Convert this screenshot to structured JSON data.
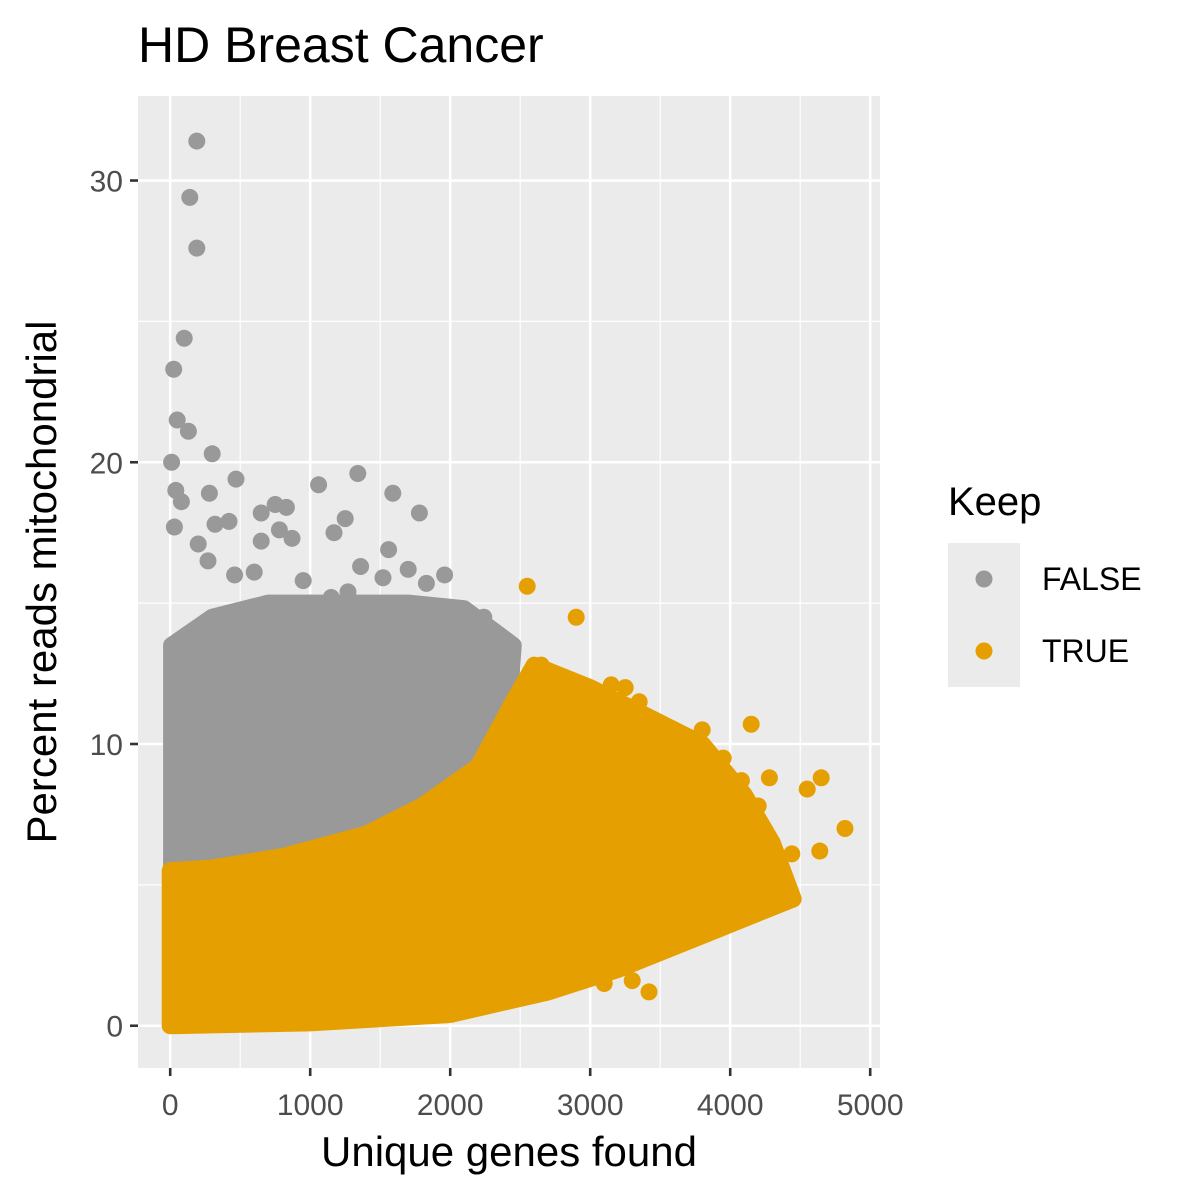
{
  "chart_data": {
    "type": "scatter",
    "title": "HD Breast Cancer",
    "xlabel": "Unique genes found",
    "ylabel": "Percent reads mitochondrial",
    "xlim": [
      -230,
      5070
    ],
    "ylim": [
      -1.5,
      33
    ],
    "x_ticks": [
      0,
      1000,
      2000,
      3000,
      4000,
      5000
    ],
    "x_tick_labels": [
      "0",
      "1000",
      "2000",
      "3000",
      "4000",
      "5000"
    ],
    "y_ticks": [
      0,
      10,
      20,
      30
    ],
    "y_tick_labels": [
      "0",
      "10",
      "20",
      "30"
    ],
    "grid": true,
    "legend": {
      "title": "Keep",
      "position": "right",
      "entries": [
        {
          "label": "FALSE",
          "color": "#999999"
        },
        {
          "label": "TRUE",
          "color": "#E69F00"
        }
      ]
    },
    "series": [
      {
        "name": "FALSE",
        "color": "#999999",
        "envelope_upper": [
          [
            10,
            13.5
          ],
          [
            300,
            14.5
          ],
          [
            700,
            15
          ],
          [
            1200,
            15
          ],
          [
            1700,
            15
          ],
          [
            2100,
            14.8
          ],
          [
            2450,
            13.5
          ]
        ],
        "points": [
          [
            190,
            31.4
          ],
          [
            140,
            29.4
          ],
          [
            190,
            27.6
          ],
          [
            100,
            24.4
          ],
          [
            25,
            23.3
          ],
          [
            50,
            21.5
          ],
          [
            130,
            21.1
          ],
          [
            300,
            20.3
          ],
          [
            10,
            20
          ],
          [
            470,
            19.4
          ],
          [
            1340,
            19.6
          ],
          [
            1060,
            19.2
          ],
          [
            1590,
            18.9
          ],
          [
            280,
            18.9
          ],
          [
            40,
            19
          ],
          [
            80,
            18.6
          ],
          [
            750,
            18.5
          ],
          [
            830,
            18.4
          ],
          [
            1780,
            18.2
          ],
          [
            650,
            18.2
          ],
          [
            420,
            17.9
          ],
          [
            1250,
            18
          ],
          [
            320,
            17.8
          ],
          [
            1170,
            17.5
          ],
          [
            780,
            17.6
          ],
          [
            870,
            17.3
          ],
          [
            650,
            17.2
          ],
          [
            1560,
            16.9
          ],
          [
            30,
            17.7
          ],
          [
            200,
            17.1
          ],
          [
            1960,
            16
          ],
          [
            1360,
            16.3
          ],
          [
            1520,
            15.9
          ],
          [
            1700,
            16.2
          ],
          [
            1830,
            15.7
          ],
          [
            270,
            16.5
          ],
          [
            460,
            16
          ],
          [
            600,
            16.1
          ],
          [
            950,
            15.8
          ],
          [
            1150,
            15.2
          ],
          [
            1270,
            15.4
          ],
          [
            1650,
            14.7
          ],
          [
            1890,
            14.5
          ],
          [
            2090,
            14.6
          ],
          [
            2240,
            14.5
          ],
          [
            1000,
            15
          ],
          [
            1400,
            14.8
          ],
          [
            800,
            14.6
          ],
          [
            550,
            14.5
          ],
          [
            2300,
            14
          ],
          [
            2420,
            13.6
          ],
          [
            700,
            13.5
          ],
          [
            1450,
            13.8
          ],
          [
            1950,
            13.9
          ]
        ]
      },
      {
        "name": "TRUE",
        "color": "#E69F00",
        "envelope_upper": [
          [
            0,
            5.5
          ],
          [
            300,
            5.6
          ],
          [
            800,
            6
          ],
          [
            1400,
            6.8
          ],
          [
            1800,
            7.8
          ],
          [
            2200,
            9.2
          ],
          [
            2450,
            11.5
          ],
          [
            2600,
            12.8
          ],
          [
            3000,
            12
          ],
          [
            3400,
            11
          ],
          [
            3800,
            10
          ],
          [
            4100,
            8.2
          ],
          [
            4300,
            6.5
          ],
          [
            4450,
            4.5
          ]
        ],
        "envelope_lower": [
          [
            0,
            0
          ],
          [
            1000,
            0.1
          ],
          [
            2000,
            0.4
          ],
          [
            2700,
            1.2
          ],
          [
            3200,
            2
          ],
          [
            3600,
            2.8
          ],
          [
            4000,
            3.6
          ],
          [
            4450,
            4.5
          ]
        ],
        "points": [
          [
            2550,
            15.6
          ],
          [
            2900,
            14.5
          ],
          [
            4820,
            7
          ],
          [
            4650,
            8.8
          ],
          [
            4550,
            8.4
          ],
          [
            4640,
            6.2
          ],
          [
            4440,
            6.1
          ],
          [
            4280,
            8.8
          ],
          [
            4150,
            10.7
          ],
          [
            4080,
            8.7
          ],
          [
            4200,
            7.8
          ],
          [
            4150,
            4.5
          ],
          [
            3950,
            5.7
          ],
          [
            4350,
            5.7
          ],
          [
            3420,
            1.2
          ],
          [
            3100,
            1.5
          ],
          [
            3300,
            1.6
          ],
          [
            3750,
            4.1
          ],
          [
            3850,
            4.5
          ],
          [
            3950,
            9.5
          ],
          [
            3800,
            10.5
          ],
          [
            3900,
            8
          ],
          [
            3650,
            5.5
          ],
          [
            3250,
            12
          ],
          [
            3500,
            10
          ],
          [
            3700,
            6.5
          ],
          [
            3600,
            3.5
          ],
          [
            4050,
            6.5
          ],
          [
            3150,
            12.1
          ],
          [
            3350,
            11.5
          ],
          [
            2650,
            12.8
          ],
          [
            2800,
            12.1
          ]
        ]
      }
    ]
  }
}
